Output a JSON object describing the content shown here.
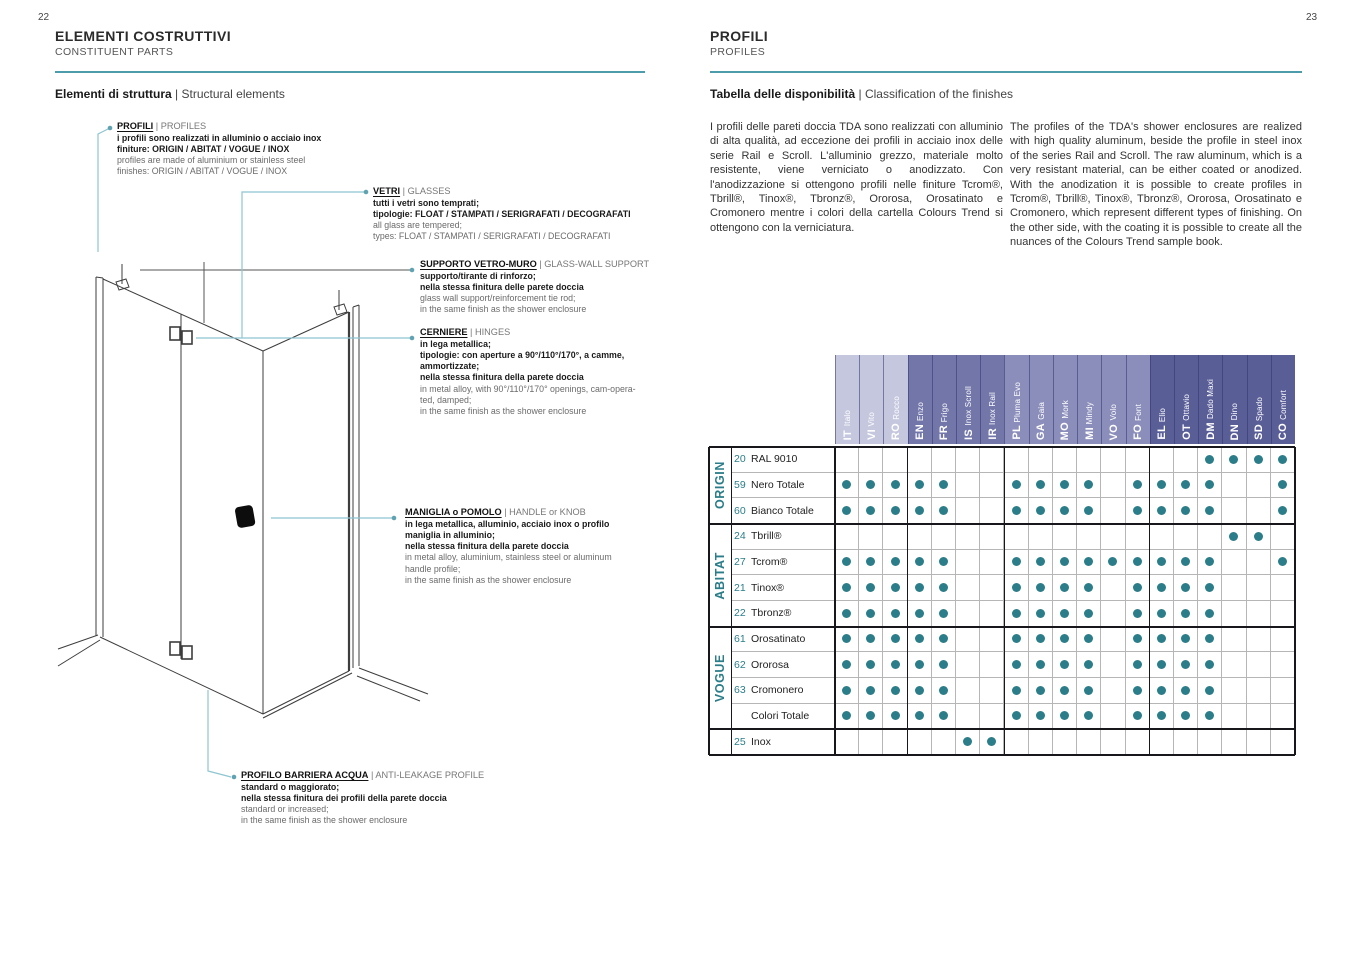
{
  "accent": {
    "teal": "#2b7e89",
    "rule_teal": "#4d9cab",
    "leader_teal": "#8ec5d2"
  },
  "page_left": {
    "page_number": "22",
    "title": "ELEMENTI COSTRUTTIVI",
    "subtitle": "CONSTITUENT PARTS",
    "section_heading_it": "Elementi di struttura",
    "section_heading_sep": " | ",
    "section_heading_en": "Structural elements",
    "callouts": [
      {
        "id": "profili",
        "title_it": "PROFILI",
        "title_en": "PROFILES",
        "lines": [
          {
            "style": "bold",
            "text": "i profili sono realizzati in alluminio o acciaio inox"
          },
          {
            "style": "bold",
            "text": "finiture: ORIGIN / ABITAT / VOGUE / INOX"
          },
          {
            "style": "gray",
            "text": "profiles are made of aluminium or stainless steel"
          },
          {
            "style": "gray",
            "text": "finishes: ORIGIN / ABITAT / VOGUE / INOX"
          }
        ]
      },
      {
        "id": "vetri",
        "title_it": "VETRI",
        "title_en": "GLASSES",
        "lines": [
          {
            "style": "bold",
            "text": "tutti i vetri sono temprati;"
          },
          {
            "style": "bold",
            "text": "tipologie: FLOAT / STAMPATI / SERIGRAFATI / DECOGRAFATI"
          },
          {
            "style": "gray",
            "text": "all glass are tempered;"
          },
          {
            "style": "gray",
            "text": "types: FLOAT / STAMPATI / SERIGRAFATI / DECOGRAFATI"
          }
        ]
      },
      {
        "id": "supporto",
        "title_it": "SUPPORTO VETRO-MURO",
        "title_en": "GLASS-WALL SUPPORT",
        "lines": [
          {
            "style": "bold",
            "text": "supporto/tirante di rinforzo;"
          },
          {
            "style": "bold",
            "text": "nella stessa finitura delle parete doccia"
          },
          {
            "style": "gray",
            "text": "glass wall support/reinforcement tie rod;"
          },
          {
            "style": "gray",
            "text": "in the same finish as the shower enclosure"
          }
        ]
      },
      {
        "id": "cerniere",
        "title_it": "CERNIERE",
        "title_en": "HINGES",
        "lines": [
          {
            "style": "bold",
            "text": "in lega metallica;"
          },
          {
            "style": "bold",
            "text": "tipologie: con aperture a 90°/110°/170°, a camme,"
          },
          {
            "style": "bold",
            "text": "ammortizzate;"
          },
          {
            "style": "bold",
            "text": "nella stessa finitura della parete doccia"
          },
          {
            "style": "gray",
            "text": "in metal alloy, with 90°/110°/170° openings, cam-opera-"
          },
          {
            "style": "gray",
            "text": "ted, damped;"
          },
          {
            "style": "gray",
            "text": "in the same finish as the shower enclosure"
          }
        ]
      },
      {
        "id": "maniglia",
        "title_it": "MANIGLIA o POMOLO",
        "title_en": "HANDLE or KNOB",
        "lines": [
          {
            "style": "bold",
            "text": "in lega metallica, alluminio, acciaio inox o profilo"
          },
          {
            "style": "bold",
            "text": "maniglia in alluminio;"
          },
          {
            "style": "bold",
            "text": "nella stessa finitura della parete doccia"
          },
          {
            "style": "gray",
            "text": "in metal alloy, aluminium, stainless steel or aluminum"
          },
          {
            "style": "gray",
            "text": "handle profile;"
          },
          {
            "style": "gray",
            "text": "in the same finish as the shower enclosure"
          }
        ]
      },
      {
        "id": "barriera",
        "title_it": "PROFILO BARRIERA ACQUA",
        "title_en": "ANTI-LEAKAGE PROFILE",
        "lines": [
          {
            "style": "bold",
            "text": "standard o maggiorato;"
          },
          {
            "style": "bold",
            "text": "nella stessa finitura dei profili della parete doccia"
          },
          {
            "style": "gray",
            "text": "standard or increased;"
          },
          {
            "style": "gray",
            "text": "in the same finish as the shower enclosure"
          }
        ]
      }
    ]
  },
  "page_right": {
    "page_number": "23",
    "title": "PROFILI",
    "subtitle": "PROFILES",
    "section_heading_it": "Tabella delle disponibilità",
    "section_heading_sep": " | ",
    "section_heading_en": "Classification of the finishes",
    "paragraph_it": "I profili delle pareti doccia TDA sono realizzati con alluminio di alta qualità, ad eccezione dei profili in acciaio inox delle serie Rail e Scroll. L'alluminio grezzo, materiale molto resistente, viene verniciato o anodizzato. Con l'anodizzazione si ottengono profili nelle finiture Tcrom®, Tbrill®, Tinox®, Tbronz®, Ororosa, Orosatinato e Cromonero mentre i colori della cartella Colours Trend si ottengono con la verniciatura.",
    "paragraph_en": "The profiles of the TDA's shower enclosures are realized with high quality aluminum, beside the profile in steel inox of the series Rail and Scroll. The raw aluminum, which is a very resistant material, can be either coated or anodized. With the anodization it is possible to create profiles in Tcrom®, Tbrill®, Tinox®, Tbronz®, Ororosa, Orosatinato e Cromonero, which represent different types of finishing. On the other side, with the coating it is possible to create all the nuances of the Colours Trend sample book."
  },
  "chart_data": {
    "type": "table",
    "title": "Tabella delle disponibilità | Classification of the finishes",
    "group_colors": [
      "#c5c7de",
      "#7276a8",
      "#8b8eba",
      "#5a5e97"
    ],
    "dot_color": "#2b7e89",
    "columns": [
      {
        "code": "IT",
        "name": "Italo",
        "group": 0
      },
      {
        "code": "VI",
        "name": "Vito",
        "group": 0
      },
      {
        "code": "RO",
        "name": "Rocco",
        "group": 0
      },
      {
        "code": "EN",
        "name": "Enzo",
        "group": 1
      },
      {
        "code": "FR",
        "name": "Frigo",
        "group": 1
      },
      {
        "code": "IS",
        "name": "Inox Scroll",
        "group": 1
      },
      {
        "code": "IR",
        "name": "Inox Rail",
        "group": 1
      },
      {
        "code": "PL",
        "name": "Pluma Evo",
        "group": 2
      },
      {
        "code": "GA",
        "name": "Gaia",
        "group": 2
      },
      {
        "code": "MO",
        "name": "Mork",
        "group": 2
      },
      {
        "code": "MI",
        "name": "Mindy",
        "group": 2
      },
      {
        "code": "VO",
        "name": "Volo",
        "group": 2
      },
      {
        "code": "FO",
        "name": "Font",
        "group": 2
      },
      {
        "code": "EL",
        "name": "Elio",
        "group": 3
      },
      {
        "code": "OT",
        "name": "Ottavio",
        "group": 3
      },
      {
        "code": "DM",
        "name": "Dado Maxi",
        "group": 3
      },
      {
        "code": "DN",
        "name": "Dino",
        "group": 3
      },
      {
        "code": "SD",
        "name": "Spado",
        "group": 3
      },
      {
        "code": "CO",
        "name": "Comfort",
        "group": 3
      }
    ],
    "rows": [
      {
        "group": "ORIGIN",
        "code": "20",
        "name": "RAL 9010",
        "availability": [
          0,
          0,
          0,
          0,
          0,
          0,
          0,
          0,
          0,
          0,
          0,
          0,
          0,
          0,
          0,
          1,
          1,
          1,
          1
        ]
      },
      {
        "group": "ORIGIN",
        "code": "59",
        "name": "Nero Totale",
        "availability": [
          1,
          1,
          1,
          1,
          1,
          0,
          0,
          1,
          1,
          1,
          1,
          0,
          1,
          1,
          1,
          1,
          0,
          0,
          1
        ]
      },
      {
        "group": "ORIGIN",
        "code": "60",
        "name": "Bianco Totale",
        "availability": [
          1,
          1,
          1,
          1,
          1,
          0,
          0,
          1,
          1,
          1,
          1,
          0,
          1,
          1,
          1,
          1,
          0,
          0,
          1
        ]
      },
      {
        "group": "ABITAT",
        "code": "24",
        "name": "Tbrill®",
        "availability": [
          0,
          0,
          0,
          0,
          0,
          0,
          0,
          0,
          0,
          0,
          0,
          0,
          0,
          0,
          0,
          0,
          1,
          1,
          0
        ]
      },
      {
        "group": "ABITAT",
        "code": "27",
        "name": "Tcrom®",
        "availability": [
          1,
          1,
          1,
          1,
          1,
          0,
          0,
          1,
          1,
          1,
          1,
          1,
          1,
          1,
          1,
          1,
          0,
          0,
          1
        ]
      },
      {
        "group": "ABITAT",
        "code": "21",
        "name": "Tinox®",
        "availability": [
          1,
          1,
          1,
          1,
          1,
          0,
          0,
          1,
          1,
          1,
          1,
          0,
          1,
          1,
          1,
          1,
          0,
          0,
          0
        ]
      },
      {
        "group": "ABITAT",
        "code": "22",
        "name": "Tbronz®",
        "availability": [
          1,
          1,
          1,
          1,
          1,
          0,
          0,
          1,
          1,
          1,
          1,
          0,
          1,
          1,
          1,
          1,
          0,
          0,
          0
        ]
      },
      {
        "group": "VOGUE",
        "code": "61",
        "name": "Orosatinato",
        "availability": [
          1,
          1,
          1,
          1,
          1,
          0,
          0,
          1,
          1,
          1,
          1,
          0,
          1,
          1,
          1,
          1,
          0,
          0,
          0
        ]
      },
      {
        "group": "VOGUE",
        "code": "62",
        "name": "Ororosa",
        "availability": [
          1,
          1,
          1,
          1,
          1,
          0,
          0,
          1,
          1,
          1,
          1,
          0,
          1,
          1,
          1,
          1,
          0,
          0,
          0
        ]
      },
      {
        "group": "VOGUE",
        "code": "63",
        "name": "Cromonero",
        "availability": [
          1,
          1,
          1,
          1,
          1,
          0,
          0,
          1,
          1,
          1,
          1,
          0,
          1,
          1,
          1,
          1,
          0,
          0,
          0
        ]
      },
      {
        "group": "VOGUE",
        "code": "",
        "name": "Colori Totale",
        "availability": [
          1,
          1,
          1,
          1,
          1,
          0,
          0,
          1,
          1,
          1,
          1,
          0,
          1,
          1,
          1,
          1,
          0,
          0,
          0
        ]
      },
      {
        "group": "",
        "code": "25",
        "name": "Inox",
        "availability": [
          0,
          0,
          0,
          0,
          0,
          1,
          1,
          0,
          0,
          0,
          0,
          0,
          0,
          0,
          0,
          0,
          0,
          0,
          0
        ]
      }
    ]
  }
}
